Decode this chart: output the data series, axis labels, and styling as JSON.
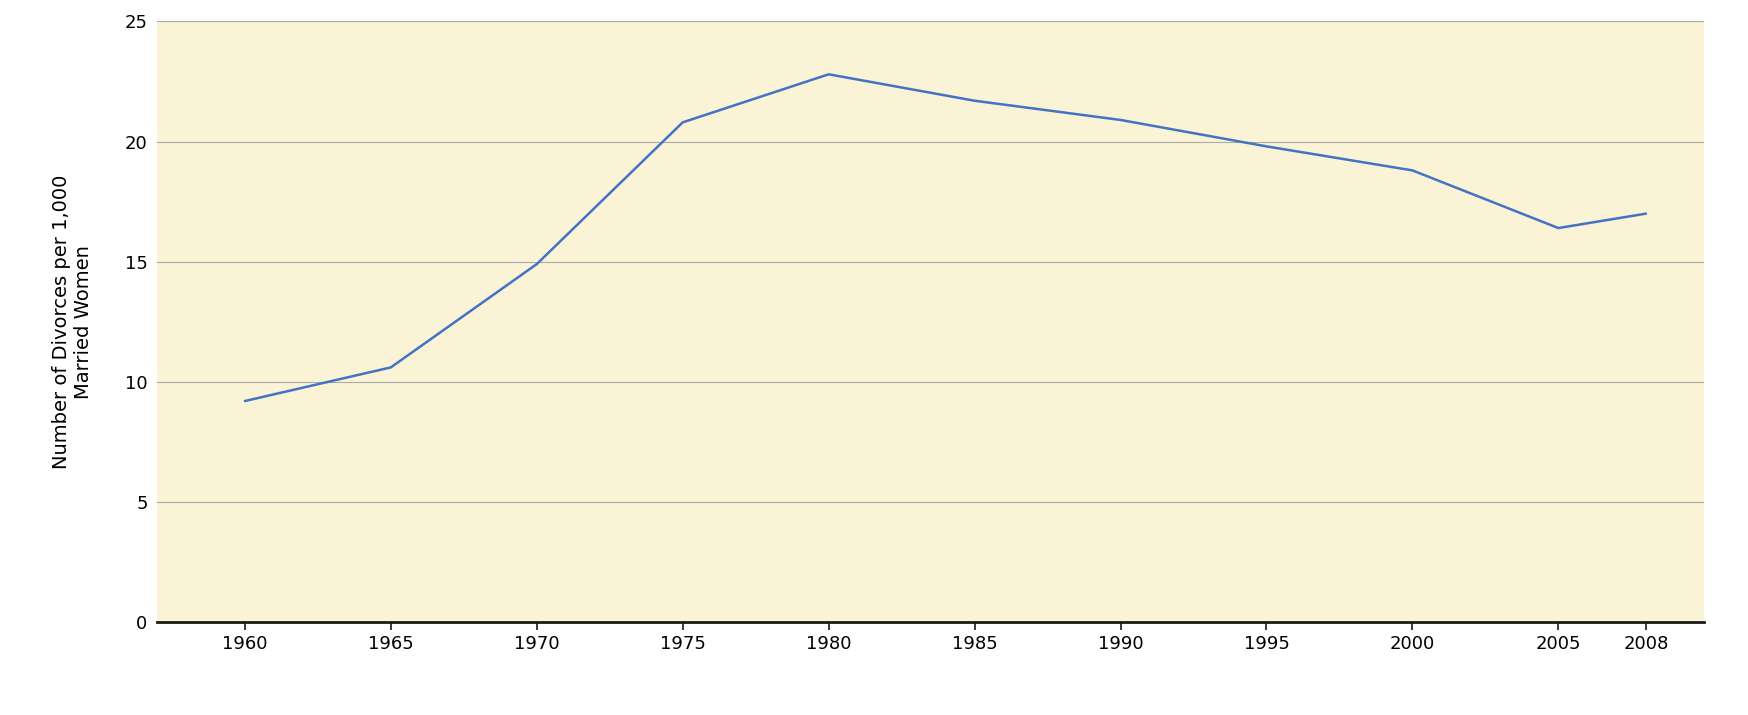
{
  "years": [
    1960,
    1965,
    1970,
    1975,
    1980,
    1985,
    1990,
    1995,
    2000,
    2005,
    2008
  ],
  "values": [
    9.2,
    10.6,
    14.9,
    20.8,
    22.8,
    21.7,
    20.9,
    19.8,
    18.8,
    16.4,
    17.0
  ],
  "line_color": "#4472C4",
  "line_width": 1.8,
  "bg_color": "#FAF3D5",
  "outer_bg": "#FFFFFF",
  "grid_color": "#AAAAAA",
  "ylabel_line1": "Number of Divorces per 1,000",
  "ylabel_line2": "Married Women",
  "xlabel": "",
  "ylim": [
    0,
    25
  ],
  "yticks": [
    0,
    5,
    10,
    15,
    20,
    25
  ],
  "xticks": [
    1960,
    1965,
    1970,
    1975,
    1980,
    1985,
    1990,
    1995,
    2000,
    2005,
    2008
  ],
  "ylabel_fontsize": 14,
  "tick_fontsize": 13,
  "xlim_left": 1957,
  "xlim_right": 2010
}
